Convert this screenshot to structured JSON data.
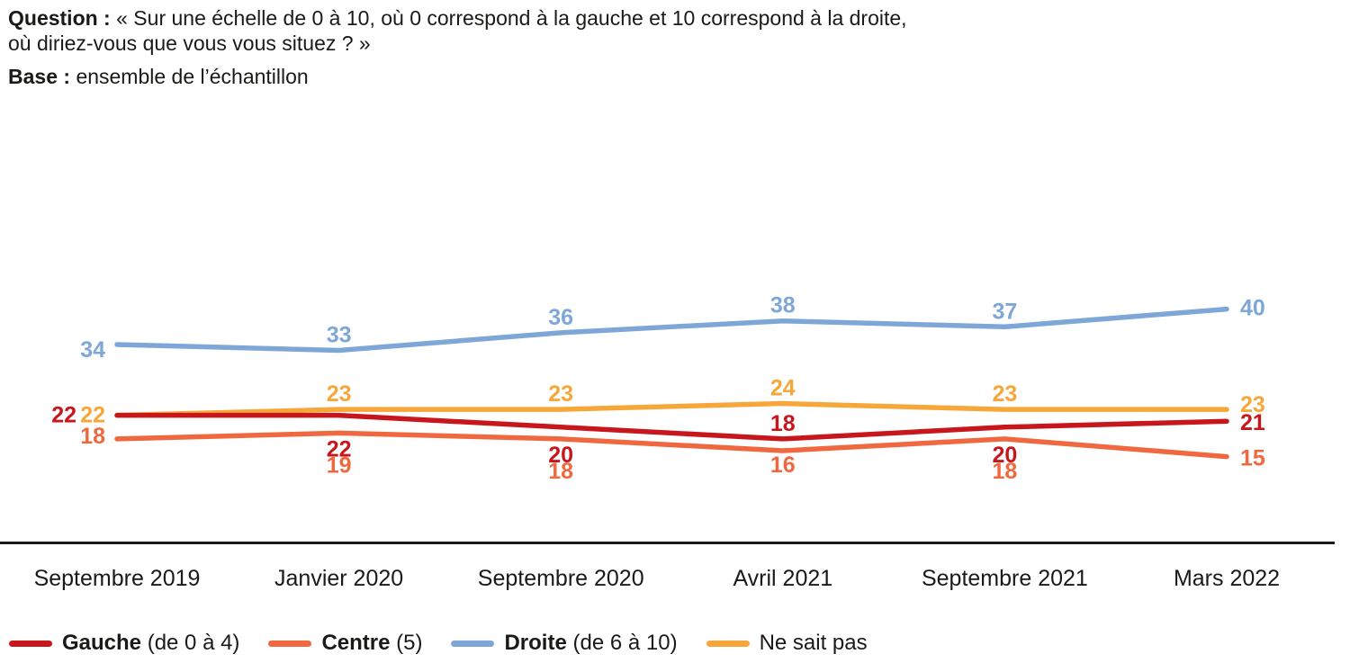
{
  "header": {
    "question_label": "Question :",
    "question_line1": "« Sur une échelle de 0 à 10, où 0 correspond à la gauche et 10 correspond à la droite,",
    "question_line2": "où diriez-vous que vous vous situez ? »",
    "base_label": "Base :",
    "base_text": "ensemble de l’échantillon"
  },
  "chart_data": {
    "type": "line",
    "categories": [
      "Septembre 2019",
      "Janvier 2020",
      "Septembre 2020",
      "Avril 2021",
      "Septembre 2021",
      "Mars 2022"
    ],
    "series": [
      {
        "id": "gauche",
        "name": "Gauche",
        "detail": "(de 0 à 4)",
        "color": "#c8161d",
        "values": [
          22,
          22,
          20,
          18,
          20,
          21
        ]
      },
      {
        "id": "centre",
        "name": "Centre",
        "detail": "(5)",
        "color": "#f0683f",
        "values": [
          18,
          19,
          18,
          16,
          18,
          15
        ]
      },
      {
        "id": "droite",
        "name": "Droite",
        "detail": "(de 6 à 10)",
        "color": "#7ea7d8",
        "values": [
          34,
          33,
          36,
          38,
          37,
          40
        ]
      },
      {
        "id": "nsp",
        "name": "",
        "detail": "Ne sait pas",
        "color": "#f7a73a",
        "values": [
          22,
          23,
          23,
          24,
          23,
          23
        ]
      }
    ],
    "title": "",
    "xlabel": "",
    "ylabel": "",
    "ylim": [
      0,
      45
    ],
    "grid": false,
    "data_labels": true,
    "legend_position": "bottom",
    "axis_color": "#1a1a18"
  }
}
